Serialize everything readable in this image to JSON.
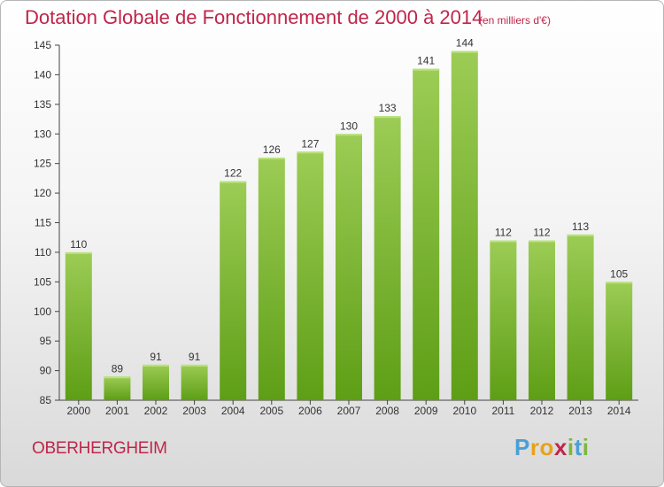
{
  "header": {
    "title": "Dotation Globale de Fonctionnement de 2000 à 2014",
    "subtitle": "(en milliers d'€)"
  },
  "footer": {
    "town": "OBERHERGHEIM",
    "logo_letters": [
      "P",
      "r",
      "o",
      "x",
      "i",
      "t",
      "i"
    ],
    "logo_colors": [
      "#4aa0d5",
      "#e8a21a",
      "#e8a21a",
      "#c0254a",
      "#7ab83e",
      "#4aa0d5",
      "#7ab83e"
    ]
  },
  "chart_data": {
    "type": "bar",
    "categories": [
      "2000",
      "2001",
      "2002",
      "2003",
      "2004",
      "2005",
      "2006",
      "2007",
      "2008",
      "2009",
      "2010",
      "2011",
      "2012",
      "2013",
      "2014"
    ],
    "values": [
      110,
      89,
      91,
      91,
      122,
      126,
      127,
      130,
      133,
      141,
      144,
      112,
      112,
      113,
      105
    ],
    "ylim": [
      85,
      145
    ],
    "yticks": [
      85,
      90,
      95,
      100,
      105,
      110,
      115,
      120,
      125,
      130,
      135,
      140,
      145
    ],
    "grid": false,
    "data_labels": true,
    "bar_color_top": "#9ccc55",
    "bar_color_bottom": "#5e9e16"
  }
}
